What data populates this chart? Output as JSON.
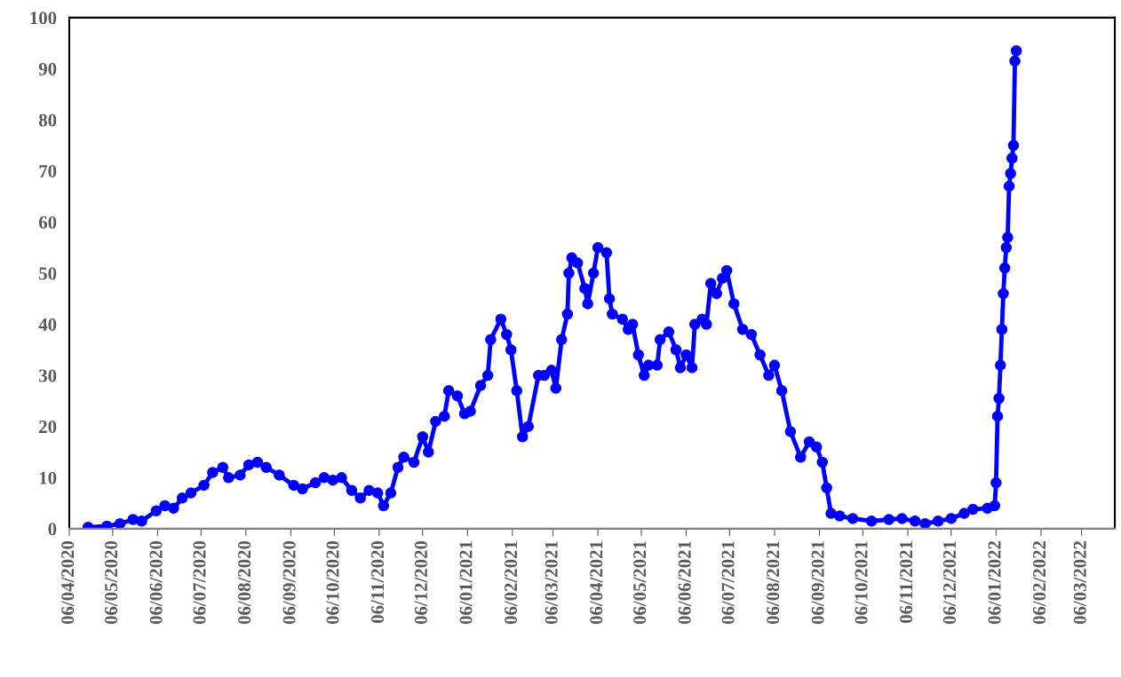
{
  "chart_data": {
    "type": "line",
    "marker": "circle",
    "line_style": "solid",
    "grid": false,
    "xlim": [
      "2020-04-06",
      "2022-03-29"
    ],
    "ylim": [
      0,
      100
    ],
    "yticks": [
      0,
      10,
      20,
      30,
      40,
      50,
      60,
      70,
      80,
      90,
      100
    ],
    "xticks": [
      {
        "value": "2020-04-06",
        "label": "06/04/2020"
      },
      {
        "value": "2020-05-06",
        "label": "06/05/2020"
      },
      {
        "value": "2020-06-06",
        "label": "06/06/2020"
      },
      {
        "value": "2020-07-06",
        "label": "06/07/2020"
      },
      {
        "value": "2020-08-06",
        "label": "06/08/2020"
      },
      {
        "value": "2020-09-06",
        "label": "06/09/2020"
      },
      {
        "value": "2020-10-06",
        "label": "06/10/2020"
      },
      {
        "value": "2020-11-06",
        "label": "06/11/2020"
      },
      {
        "value": "2020-12-06",
        "label": "06/12/2020"
      },
      {
        "value": "2021-01-06",
        "label": "06/01/2021"
      },
      {
        "value": "2021-02-06",
        "label": "06/02/2021"
      },
      {
        "value": "2021-03-06",
        "label": "06/03/2021"
      },
      {
        "value": "2021-04-06",
        "label": "06/04/2021"
      },
      {
        "value": "2021-05-06",
        "label": "06/05/2021"
      },
      {
        "value": "2021-06-06",
        "label": "06/06/2021"
      },
      {
        "value": "2021-07-06",
        "label": "06/07/2021"
      },
      {
        "value": "2021-08-06",
        "label": "06/08/2021"
      },
      {
        "value": "2021-09-06",
        "label": "06/09/2021"
      },
      {
        "value": "2021-10-06",
        "label": "06/10/2021"
      },
      {
        "value": "2021-11-06",
        "label": "06/11/2021"
      },
      {
        "value": "2021-12-06",
        "label": "06/12/2021"
      },
      {
        "value": "2022-01-06",
        "label": "06/01/2022"
      },
      {
        "value": "2022-02-06",
        "label": "06/02/2022"
      },
      {
        "value": "2022-03-06",
        "label": "06/03/2022"
      }
    ],
    "series": [
      {
        "color": "#0000ff",
        "x": [
          "2020-04-19",
          "2020-05-02",
          "2020-05-11",
          "2020-05-20",
          "2020-05-26",
          "2020-06-05",
          "2020-06-11",
          "2020-06-17",
          "2020-06-23",
          "2020-06-29",
          "2020-07-08",
          "2020-07-14",
          "2020-07-21",
          "2020-07-25",
          "2020-08-02",
          "2020-08-08",
          "2020-08-14",
          "2020-08-20",
          "2020-08-29",
          "2020-09-08",
          "2020-09-14",
          "2020-09-23",
          "2020-09-29",
          "2020-10-05",
          "2020-10-11",
          "2020-10-18",
          "2020-10-24",
          "2020-10-30",
          "2020-11-05",
          "2020-11-09",
          "2020-11-14",
          "2020-11-19",
          "2020-11-23",
          "2020-11-30",
          "2020-12-06",
          "2020-12-10",
          "2020-12-15",
          "2020-12-21",
          "2020-12-24",
          "2020-12-30",
          "2021-01-04",
          "2021-01-08",
          "2021-01-15",
          "2021-01-20",
          "2021-01-22",
          "2021-01-29",
          "2021-02-02",
          "2021-02-05",
          "2021-02-09",
          "2021-02-13",
          "2021-02-17",
          "2021-02-24",
          "2021-02-28",
          "2021-03-05",
          "2021-03-08",
          "2021-03-12",
          "2021-03-16",
          "2021-03-17",
          "2021-03-19",
          "2021-03-23",
          "2021-03-28",
          "2021-03-30",
          "2021-04-03",
          "2021-04-06",
          "2021-04-12",
          "2021-04-14",
          "2021-04-16",
          "2021-04-23",
          "2021-04-27",
          "2021-04-30",
          "2021-05-04",
          "2021-05-08",
          "2021-05-11",
          "2021-05-17",
          "2021-05-19",
          "2021-05-25",
          "2021-05-30",
          "2021-06-02",
          "2021-06-06",
          "2021-06-10",
          "2021-06-12",
          "2021-06-17",
          "2021-06-20",
          "2021-06-23",
          "2021-06-27",
          "2021-07-01",
          "2021-07-04",
          "2021-07-09",
          "2021-07-15",
          "2021-07-21",
          "2021-07-27",
          "2021-08-02",
          "2021-08-06",
          "2021-08-11",
          "2021-08-17",
          "2021-08-24",
          "2021-08-30",
          "2021-09-04",
          "2021-09-08",
          "2021-09-11",
          "2021-09-14",
          "2021-09-20",
          "2021-09-29",
          "2021-10-12",
          "2021-10-24",
          "2021-11-02",
          "2021-11-11",
          "2021-11-18",
          "2021-11-27",
          "2021-12-06",
          "2021-12-15",
          "2021-12-21",
          "2021-12-31",
          "2022-01-05",
          "2022-01-06",
          "2022-01-07",
          "2022-01-08",
          "2022-01-09",
          "2022-01-10",
          "2022-01-11",
          "2022-01-12",
          "2022-01-13",
          "2022-01-14",
          "2022-01-15",
          "2022-01-16",
          "2022-01-17",
          "2022-01-18",
          "2022-01-19",
          "2022-01-20"
        ],
        "values": [
          0.3,
          0.5,
          1.0,
          1.8,
          1.5,
          3.5,
          4.5,
          4.0,
          6.0,
          7.0,
          8.5,
          11,
          12,
          10,
          10.5,
          12.5,
          13,
          12,
          10.5,
          8.5,
          7.8,
          9,
          10,
          9.5,
          10,
          7.5,
          6,
          7.5,
          7,
          4.5,
          7,
          12,
          14,
          13,
          18,
          15,
          21,
          22,
          27,
          26,
          22.5,
          23,
          28,
          30,
          37,
          41,
          38,
          35,
          27,
          18,
          20,
          30,
          30,
          31,
          27.5,
          37,
          42,
          50,
          53,
          52,
          47,
          44,
          50,
          55,
          54,
          45,
          42,
          41,
          39,
          40,
          34,
          30,
          32,
          32,
          37,
          38.5,
          35,
          31.5,
          34,
          31.5,
          40,
          41,
          40,
          48,
          46,
          49,
          50.5,
          44,
          39,
          38,
          34,
          30,
          32,
          27,
          19,
          14,
          17,
          16,
          13,
          8,
          3,
          2.5,
          2,
          1.5,
          1.8,
          2.0,
          1.5,
          1.0,
          1.5,
          2.0,
          3.0,
          3.8,
          4.0,
          4.5,
          9,
          22,
          25.5,
          32,
          39,
          46,
          51,
          55,
          57,
          67,
          69.5,
          72.5,
          75,
          91.5,
          93.5
        ]
      }
    ]
  }
}
